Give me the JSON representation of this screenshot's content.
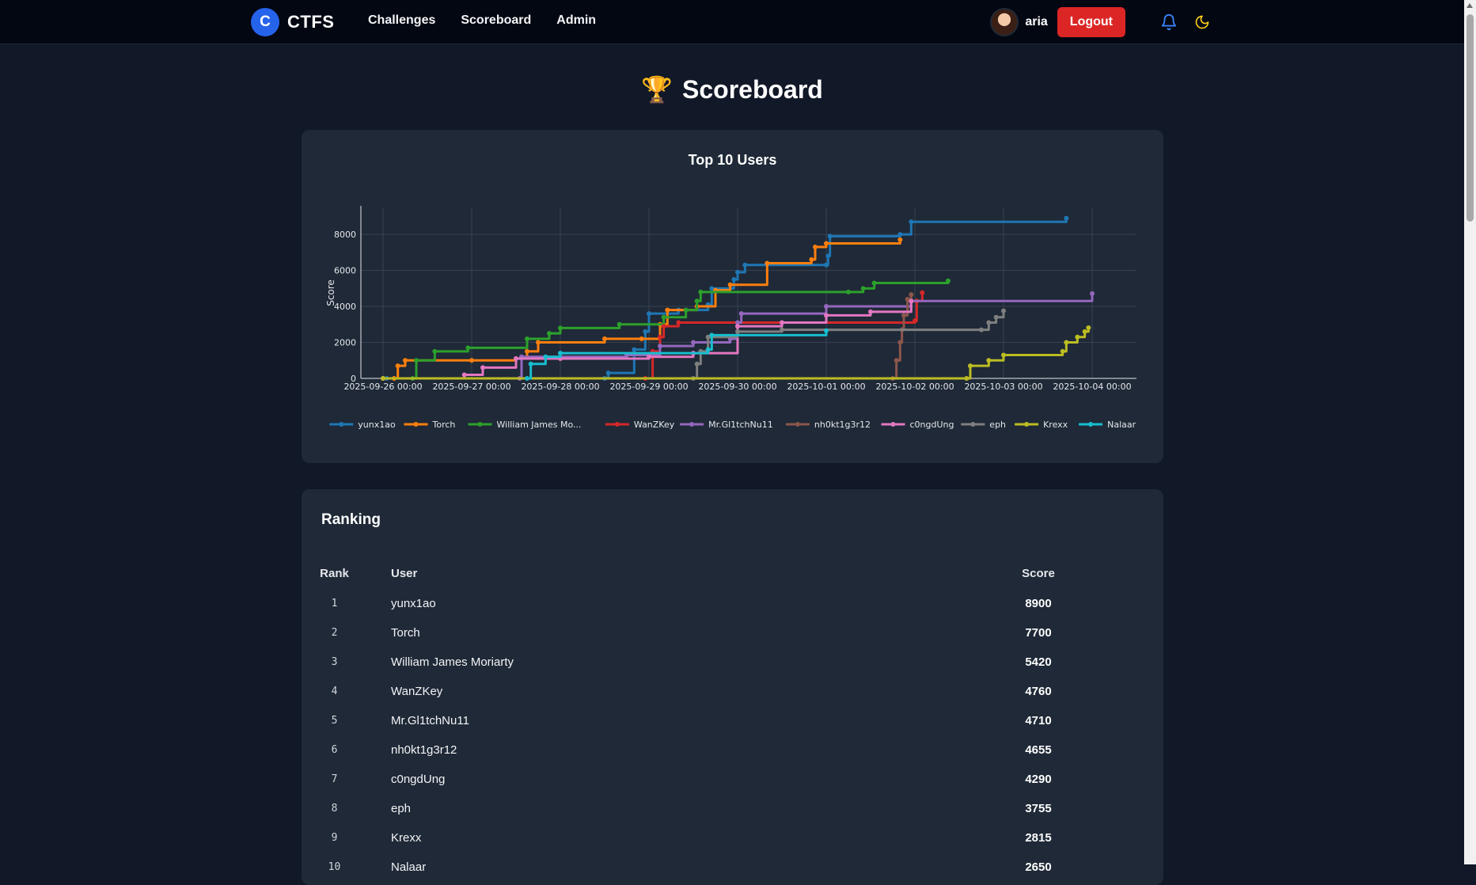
{
  "nav": {
    "logo_letter": "C",
    "brand": "CTFS",
    "links": [
      "Challenges",
      "Scoreboard",
      "Admin"
    ],
    "username": "aria",
    "logout_label": "Logout",
    "icons": [
      "bell-icon",
      "moon-icon"
    ]
  },
  "page": {
    "trophy": "🏆",
    "title": "Scoreboard"
  },
  "colors": {
    "accent": "#2563eb",
    "logout": "#dc2626",
    "card_bg": "#1f2937",
    "page_bg": "#111827"
  },
  "chart_card": {
    "title": "Top 10 Users"
  },
  "chart_data": {
    "type": "line",
    "title": "Top 10 Users",
    "xlabel": "",
    "ylabel": "Score",
    "x_ticks": [
      "2025-09-26 00:00",
      "2025-09-27 00:00",
      "2025-09-28 00:00",
      "2025-09-29 00:00",
      "2025-09-30 00:00",
      "2025-10-01 00:00",
      "2025-10-02 00:00",
      "2025-10-03 00:00",
      "2025-10-04 00:00"
    ],
    "y_ticks": [
      0,
      2000,
      4000,
      6000,
      8000
    ],
    "ylim": [
      0,
      9500
    ],
    "xlim": [
      "2025-09-25 18:00",
      "2025-10-04 12:00"
    ],
    "grid": true,
    "legend_position": "bottom",
    "series": [
      {
        "name": "yunx1ao",
        "legend": "yunx1ao",
        "color": "#1f77b4",
        "points": [
          [
            "2025-09-26 01:00",
            0
          ],
          [
            "2025-09-28 12:00",
            0
          ],
          [
            "2025-09-28 13:00",
            300
          ],
          [
            "2025-09-28 20:00",
            1600
          ],
          [
            "2025-09-28 23:00",
            2600
          ],
          [
            "2025-09-29 00:00",
            3600
          ],
          [
            "2025-09-29 08:00",
            3800
          ],
          [
            "2025-09-29 16:00",
            4100
          ],
          [
            "2025-09-29 17:00",
            5000
          ],
          [
            "2025-09-29 23:00",
            5500
          ],
          [
            "2025-09-30 00:00",
            5900
          ],
          [
            "2025-09-30 02:00",
            6300
          ],
          [
            "2025-10-01 00:00",
            6300
          ],
          [
            "2025-10-01 00:30",
            6800
          ],
          [
            "2025-10-01 01:00",
            7900
          ],
          [
            "2025-10-01 20:00",
            8000
          ],
          [
            "2025-10-01 23:00",
            8700
          ],
          [
            "2025-10-03 17:00",
            8900
          ]
        ]
      },
      {
        "name": "Torch",
        "legend": "Torch",
        "color": "#ff7f0e",
        "points": [
          [
            "2025-09-26 03:00",
            0
          ],
          [
            "2025-09-26 04:00",
            700
          ],
          [
            "2025-09-26 06:00",
            1000
          ],
          [
            "2025-09-27 00:00",
            1000
          ],
          [
            "2025-09-27 12:00",
            1100
          ],
          [
            "2025-09-27 15:00",
            1500
          ],
          [
            "2025-09-27 18:00",
            2000
          ],
          [
            "2025-09-28 12:00",
            2200
          ],
          [
            "2025-09-28 22:00",
            2200
          ],
          [
            "2025-09-29 03:00",
            3000
          ],
          [
            "2025-09-29 05:00",
            3800
          ],
          [
            "2025-09-29 13:00",
            4000
          ],
          [
            "2025-09-29 18:00",
            4900
          ],
          [
            "2025-09-29 22:00",
            5200
          ],
          [
            "2025-09-30 08:00",
            6400
          ],
          [
            "2025-09-30 20:00",
            6600
          ],
          [
            "2025-09-30 21:00",
            7300
          ],
          [
            "2025-10-01 00:00",
            7500
          ],
          [
            "2025-10-01 20:00",
            7700
          ]
        ]
      },
      {
        "name": "William James Moriarty",
        "legend": "William James Mo...",
        "color": "#2ca02c",
        "points": [
          [
            "2025-09-26 08:00",
            0
          ],
          [
            "2025-09-26 09:00",
            1000
          ],
          [
            "2025-09-26 14:00",
            1500
          ],
          [
            "2025-09-26 23:00",
            1700
          ],
          [
            "2025-09-27 15:00",
            2200
          ],
          [
            "2025-09-27 21:00",
            2500
          ],
          [
            "2025-09-28 00:00",
            2800
          ],
          [
            "2025-09-28 16:00",
            3000
          ],
          [
            "2025-09-29 04:00",
            3400
          ],
          [
            "2025-09-29 10:00",
            3800
          ],
          [
            "2025-09-29 13:00",
            4300
          ],
          [
            "2025-09-29 14:00",
            4800
          ],
          [
            "2025-10-01 06:00",
            4800
          ],
          [
            "2025-10-01 10:00",
            5000
          ],
          [
            "2025-10-01 13:00",
            5300
          ],
          [
            "2025-10-02 09:00",
            5420
          ]
        ]
      },
      {
        "name": "WanZKey",
        "legend": "WanZKey",
        "color": "#d62728",
        "points": [
          [
            "2025-09-28 23:00",
            0
          ],
          [
            "2025-09-29 01:00",
            1500
          ],
          [
            "2025-09-29 03:00",
            2300
          ],
          [
            "2025-09-29 04:00",
            2900
          ],
          [
            "2025-09-29 08:00",
            3100
          ],
          [
            "2025-10-02 00:00",
            3200
          ],
          [
            "2025-10-02 00:30",
            4300
          ],
          [
            "2025-10-02 02:00",
            4760
          ]
        ]
      },
      {
        "name": "Mr.Gl1tchNu11",
        "legend": "Mr.Gl1tchNu11",
        "color": "#9467bd",
        "points": [
          [
            "2025-09-27 13:00",
            0
          ],
          [
            "2025-09-27 13:30",
            1200
          ],
          [
            "2025-09-28 18:00",
            1300
          ],
          [
            "2025-09-29 03:00",
            1800
          ],
          [
            "2025-09-29 12:00",
            2000
          ],
          [
            "2025-09-29 22:00",
            2200
          ],
          [
            "2025-09-30 00:00",
            3100
          ],
          [
            "2025-09-30 01:00",
            3600
          ],
          [
            "2025-10-01 00:00",
            4000
          ],
          [
            "2025-10-01 23:00",
            4300
          ],
          [
            "2025-10-04 00:00",
            4710
          ]
        ]
      },
      {
        "name": "nh0kt1g3r12",
        "legend": "nh0kt1g3r12",
        "color": "#8c564b",
        "points": [
          [
            "2025-10-01 18:00",
            0
          ],
          [
            "2025-10-01 19:00",
            1000
          ],
          [
            "2025-10-01 20:00",
            2000
          ],
          [
            "2025-10-01 20:30",
            2700
          ],
          [
            "2025-10-01 21:00",
            3500
          ],
          [
            "2025-10-01 22:00",
            4400
          ],
          [
            "2025-10-01 23:00",
            4655
          ]
        ]
      },
      {
        "name": "c0ngdUng",
        "legend": "c0ngdUng",
        "color": "#e377c2",
        "points": [
          [
            "2025-09-26 00:00",
            0
          ],
          [
            "2025-09-26 22:00",
            200
          ],
          [
            "2025-09-27 03:00",
            600
          ],
          [
            "2025-09-27 12:00",
            1100
          ],
          [
            "2025-09-28 00:00",
            1100
          ],
          [
            "2025-09-29 00:00",
            1200
          ],
          [
            "2025-09-29 12:00",
            1400
          ],
          [
            "2025-09-30 00:00",
            2900
          ],
          [
            "2025-09-30 12:00",
            3100
          ],
          [
            "2025-10-01 00:00",
            3500
          ],
          [
            "2025-10-01 12:00",
            3700
          ],
          [
            "2025-10-01 23:00",
            4290
          ]
        ]
      },
      {
        "name": "eph",
        "legend": "eph",
        "color": "#7f7f7f",
        "points": [
          [
            "2025-09-29 12:00",
            0
          ],
          [
            "2025-09-29 13:00",
            800
          ],
          [
            "2025-09-29 14:00",
            1500
          ],
          [
            "2025-09-29 16:00",
            2300
          ],
          [
            "2025-09-30 00:00",
            2600
          ],
          [
            "2025-09-30 12:00",
            2700
          ],
          [
            "2025-10-02 18:00",
            2700
          ],
          [
            "2025-10-02 20:00",
            3100
          ],
          [
            "2025-10-02 22:00",
            3400
          ],
          [
            "2025-10-03 00:00",
            3755
          ]
        ]
      },
      {
        "name": "Krexx",
        "legend": "Krexx",
        "color": "#bcbd22",
        "points": [
          [
            "2025-09-26 00:00",
            0
          ],
          [
            "2025-10-02 14:00",
            0
          ],
          [
            "2025-10-02 15:00",
            700
          ],
          [
            "2025-10-02 20:00",
            1000
          ],
          [
            "2025-10-03 00:00",
            1300
          ],
          [
            "2025-10-03 16:00",
            1500
          ],
          [
            "2025-10-03 17:00",
            2000
          ],
          [
            "2025-10-03 20:00",
            2300
          ],
          [
            "2025-10-03 22:00",
            2600
          ],
          [
            "2025-10-03 23:00",
            2815
          ]
        ]
      },
      {
        "name": "Nalaar",
        "legend": "Nalaar",
        "color": "#17becf",
        "points": [
          [
            "2025-09-27 15:00",
            0
          ],
          [
            "2025-09-27 16:00",
            800
          ],
          [
            "2025-09-27 20:00",
            1200
          ],
          [
            "2025-09-28 00:00",
            1400
          ],
          [
            "2025-09-29 16:00",
            1600
          ],
          [
            "2025-09-29 17:00",
            2400
          ],
          [
            "2025-10-01 00:00",
            2650
          ]
        ]
      }
    ]
  },
  "ranking": {
    "title": "Ranking",
    "headers": {
      "rank": "Rank",
      "user": "User",
      "score": "Score"
    },
    "rows": [
      {
        "rank": "1",
        "user": "yunx1ao",
        "score": "8900"
      },
      {
        "rank": "2",
        "user": "Torch",
        "score": "7700"
      },
      {
        "rank": "3",
        "user": "William James Moriarty",
        "score": "5420"
      },
      {
        "rank": "4",
        "user": "WanZKey",
        "score": "4760"
      },
      {
        "rank": "5",
        "user": "Mr.Gl1tchNu11",
        "score": "4710"
      },
      {
        "rank": "6",
        "user": "nh0kt1g3r12",
        "score": "4655"
      },
      {
        "rank": "7",
        "user": "c0ngdUng",
        "score": "4290"
      },
      {
        "rank": "8",
        "user": "eph",
        "score": "3755"
      },
      {
        "rank": "9",
        "user": "Krexx",
        "score": "2815"
      },
      {
        "rank": "10",
        "user": "Nalaar",
        "score": "2650"
      }
    ]
  }
}
